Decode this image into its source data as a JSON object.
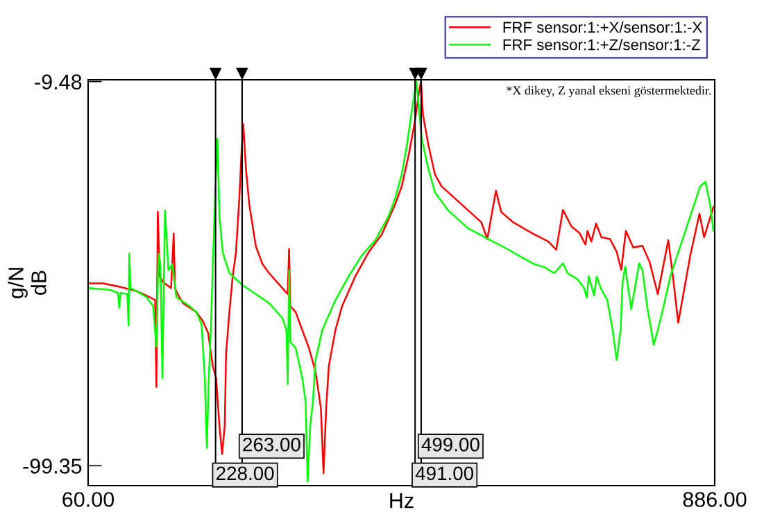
{
  "chart_data": {
    "type": "line",
    "xlabel": "Hz",
    "ylabel": "g/N\ndB",
    "xlim": [
      60,
      886
    ],
    "ylim": [
      -104.0,
      -9.06
    ],
    "xticks": [
      {
        "value": 60,
        "label": "60.00"
      },
      {
        "value": 886,
        "label": "886.00"
      }
    ],
    "yticks": [
      {
        "value": -9.48,
        "label": "-9.48"
      },
      {
        "value": -99.35,
        "label": "-99.35"
      }
    ],
    "grid": false,
    "legend": "top right",
    "marker": "none",
    "line_style": "solid",
    "annotations": [
      "*X dikey, Z yanal ekseni göstermektedir."
    ],
    "ref_lines": [
      {
        "axis": "x",
        "value": 228,
        "label": "228.00",
        "color": "#000000"
      },
      {
        "axis": "x",
        "value": 263,
        "label": "263.00",
        "color": "#000000"
      },
      {
        "axis": "x",
        "value": 491,
        "label": "491.00",
        "color": "#000000"
      },
      {
        "axis": "x",
        "value": 499,
        "label": "499.00",
        "color": "#000000"
      }
    ],
    "series": [
      {
        "name": "FRF sensor:1:+X/sensor:1:-X",
        "color": "#ff0000",
        "x": [
          60,
          80.1,
          102,
          123.8,
          141.3,
          148.3,
          150,
          151.8,
          154.4,
          158.8,
          169.3,
          172.8,
          174.5,
          178,
          185,
          202.5,
          211.2,
          218.2,
          224.3,
          228.7,
          233.1,
          236.6,
          240.1,
          241.8,
          246.2,
          250.6,
          254.9,
          259.3,
          261.9,
          264.5,
          268,
          272.4,
          281.1,
          289.9,
          298.6,
          316.1,
          323.1,
          324.9,
          326.6,
          333.6,
          342.3,
          351.1,
          359.8,
          366.8,
          370.3,
          373.8,
          377.3,
          386,
          394.8,
          412.3,
          429.7,
          447.2,
          464.7,
          473.4,
          482.2,
          486.6,
          490.9,
          495.3,
          498.8,
          501.4,
          508.4,
          517.2,
          525.9,
          543.4,
          560.9,
          578.3,
          586.2,
          597.6,
          604.6,
          620.3,
          644.8,
          666.6,
          677.1,
          685.9,
          697.2,
          707.7,
          715.6,
          718.2,
          723.4,
          729.6,
          736.6,
          747.9,
          756.7,
          762.8,
          768.9,
          778.5,
          790.7,
          800.4,
          810.9,
          824.8,
          830.9,
          837.9,
          853.7,
          865.9,
          872,
          884.3
        ],
        "values": [
          -56.7,
          -56.7,
          -57.5,
          -58.5,
          -59.9,
          -60.6,
          -80.9,
          -39.9,
          -55.0,
          -56.4,
          -57.8,
          -45.0,
          -57.8,
          -59.2,
          -61.3,
          -63.4,
          -65.5,
          -68.3,
          -76.0,
          -78.8,
          -90.0,
          -96.6,
          -90.0,
          -73.2,
          -63.4,
          -55.0,
          -49.4,
          -36.8,
          -27.0,
          -19.4,
          -29.8,
          -38.2,
          -48.0,
          -52.2,
          -54.3,
          -57.8,
          -59.2,
          -48.6,
          -62.0,
          -63.4,
          -67.6,
          -71.8,
          -77.4,
          -85.8,
          -101.1,
          -85.8,
          -76.0,
          -67.6,
          -62.0,
          -55.0,
          -49.4,
          -45.2,
          -38.2,
          -34.0,
          -27.0,
          -22.8,
          -18.6,
          -13.0,
          -9.3,
          -17.2,
          -24.2,
          -31.2,
          -34.0,
          -36.8,
          -39.6,
          -42.4,
          -46.3,
          -35.0,
          -40.0,
          -42.4,
          -44.9,
          -46.9,
          -48.8,
          -39.5,
          -43.4,
          -44.9,
          -47.6,
          -44.4,
          -46.9,
          -42.7,
          -45.9,
          -46.3,
          -49.3,
          -53.5,
          -44.4,
          -48.3,
          -47.9,
          -51.8,
          -59.2,
          -46.6,
          -55.1,
          -65.9,
          -50.2,
          -40.4,
          -45.9,
          -38.8
        ]
      },
      {
        "name": "FRF sensor:1:+Z/sensor:1:-Z",
        "color": "#00ff00",
        "x": [
          60,
          88.8,
          99.3,
          101.1,
          102.8,
          111.6,
          113.3,
          114.2,
          115.9,
          123.8,
          136.9,
          145.7,
          150,
          152.7,
          155.3,
          157.9,
          161.4,
          165.8,
          171,
          176.3,
          193.7,
          202.5,
          209.5,
          213.8,
          216.5,
          219.1,
          221.7,
          225.2,
          227.8,
          230.4,
          233.1,
          237.4,
          246.2,
          263.7,
          281.1,
          298.6,
          316.1,
          321.4,
          323.1,
          324.9,
          326.6,
          333.6,
          342.3,
          346.7,
          349.3,
          352.8,
          356.3,
          359.8,
          368.6,
          386,
          403.5,
          421,
          438.5,
          456,
          464.7,
          473.4,
          480.4,
          484.8,
          488.3,
          492.7,
          496.2,
          499.7,
          508.4,
          517.2,
          534.6,
          560.9,
          587.1,
          613.3,
          630.8,
          648.3,
          661.4,
          674.5,
          685.9,
          692,
          705.1,
          713.8,
          717.3,
          720,
          726.9,
          730.4,
          735.7,
          744.4,
          751.4,
          756.7,
          761.9,
          764.5,
          768,
          775.9,
          786.4,
          790.7,
          796.9,
          805.6,
          810.9,
          818.7,
          827.5,
          840.6,
          853.7,
          866.8,
          873.8,
          879.9,
          884.3
        ],
        "values": [
          -57.8,
          -58.2,
          -58.9,
          -62.4,
          -58.9,
          -59.2,
          -66.5,
          -49.7,
          -57.8,
          -58.5,
          -59.9,
          -62.0,
          -71.5,
          -49.7,
          -52.2,
          -78.9,
          -39.6,
          -53.6,
          -52.2,
          -59.9,
          -62.0,
          -63.4,
          -66.2,
          -78.8,
          -95.2,
          -78.8,
          -67.6,
          -48.0,
          -34.0,
          -22.9,
          -41.0,
          -49.4,
          -54.3,
          -57.1,
          -59.2,
          -61.3,
          -64.8,
          -67.6,
          -80.3,
          -53.6,
          -70.4,
          -71.8,
          -78.8,
          -84.4,
          -103.0,
          -90.0,
          -84.4,
          -74.6,
          -67.6,
          -60.6,
          -55.0,
          -50.1,
          -46.6,
          -41.0,
          -36.8,
          -31.2,
          -24.2,
          -18.6,
          -14.4,
          -9.5,
          -15.8,
          -22.8,
          -29.8,
          -35.4,
          -39.6,
          -43.8,
          -46.3,
          -48.7,
          -50.5,
          -52.2,
          -52.9,
          -54.3,
          -52.0,
          -54.3,
          -55.7,
          -57.8,
          -60.0,
          -55.0,
          -59.5,
          -55.1,
          -57.8,
          -60.6,
          -67.6,
          -74.6,
          -67.6,
          -56.4,
          -52.8,
          -62.7,
          -52.0,
          -53.6,
          -62.0,
          -71.1,
          -67.6,
          -62.0,
          -55.0,
          -48.0,
          -41.0,
          -34.0,
          -32.9,
          -38.2,
          -44.4
        ]
      }
    ]
  }
}
